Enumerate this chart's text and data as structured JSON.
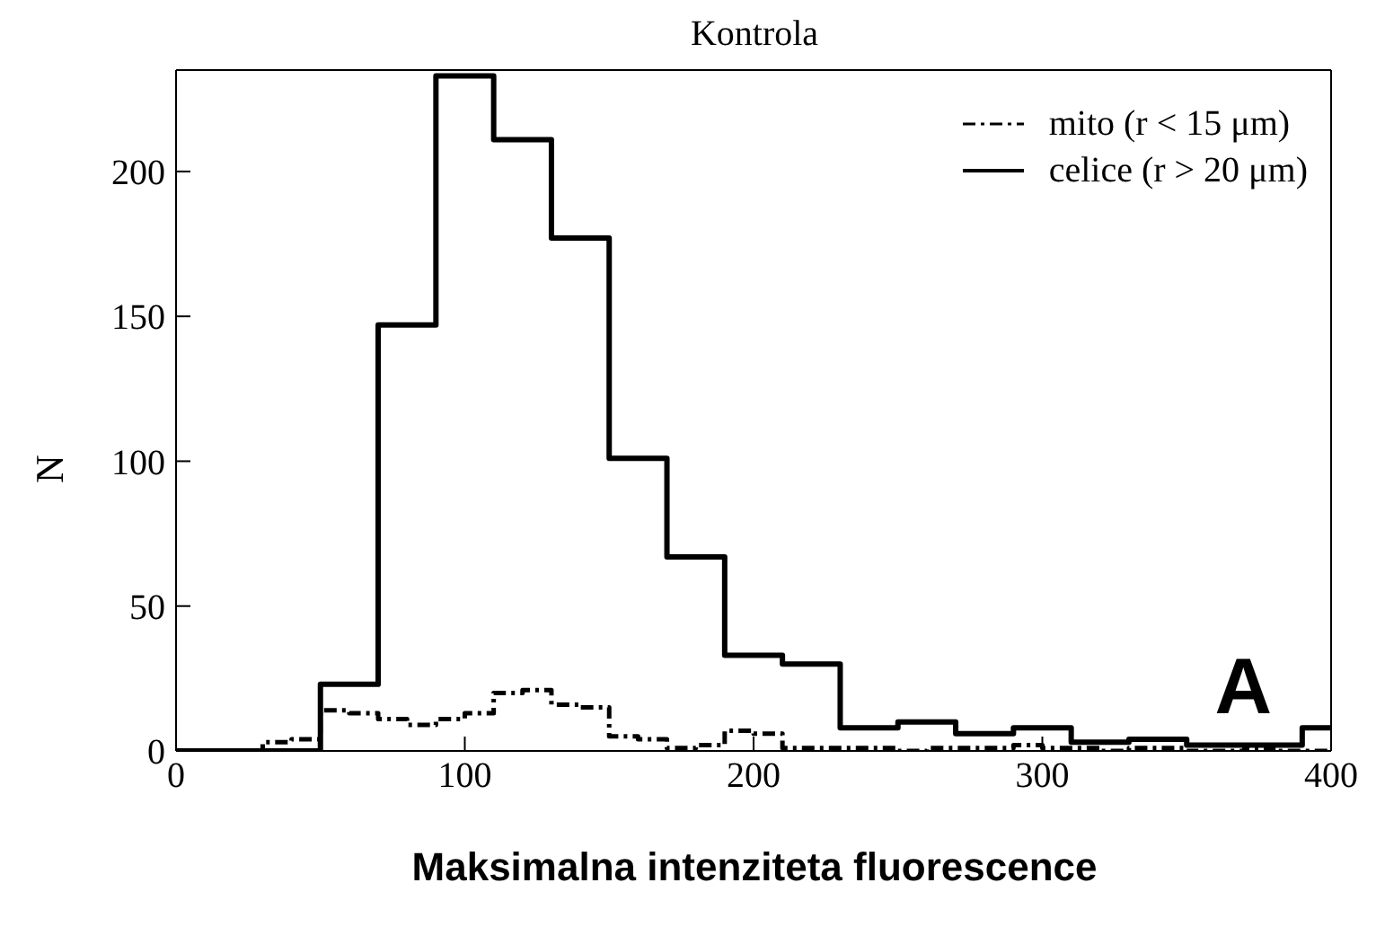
{
  "chart_data": {
    "type": "histogram",
    "title": "Kontrola",
    "xlabel": "Maksimalna intenziteta fluorescence",
    "ylabel": "N",
    "annotations": [
      "A"
    ],
    "bins": [
      0,
      10,
      20,
      30,
      40,
      50,
      60,
      70,
      80,
      90,
      100,
      110,
      120,
      130,
      140,
      150,
      160,
      170,
      180,
      190,
      200,
      210,
      220,
      230,
      240,
      250,
      260,
      270,
      280,
      290,
      300,
      310,
      320,
      330,
      340,
      350,
      360,
      370,
      380,
      390,
      400
    ],
    "series": [
      {
        "name": "mito (r < 15 μm)",
        "color": "#000000",
        "line_style": "dashed",
        "values": [
          0,
          0,
          0,
          3,
          4,
          14,
          13,
          11,
          9,
          11,
          13,
          20,
          21,
          16,
          15,
          5,
          4,
          1,
          2,
          7,
          6,
          1,
          1,
          1,
          1,
          0,
          1,
          1,
          1,
          2,
          1,
          1,
          0,
          1,
          1,
          0,
          0,
          1,
          0,
          0
        ]
      },
      {
        "name": "celice (r > 20 μm)",
        "color": "#000000",
        "line_style": "solid",
        "values": [
          0,
          0,
          0,
          0,
          0,
          23,
          23,
          147,
          147,
          233,
          233,
          211,
          211,
          177,
          177,
          101,
          101,
          67,
          67,
          33,
          33,
          30,
          30,
          8,
          8,
          10,
          10,
          6,
          6,
          8,
          8,
          3,
          3,
          4,
          4,
          2,
          2,
          2,
          2,
          8
        ]
      }
    ],
    "xlim": [
      0,
      400
    ],
    "xticks": [
      0,
      100,
      200,
      300,
      400
    ],
    "ylim": [
      0,
      235
    ],
    "yticks": [
      0,
      50,
      100,
      150,
      200
    ],
    "legend": "top right"
  }
}
